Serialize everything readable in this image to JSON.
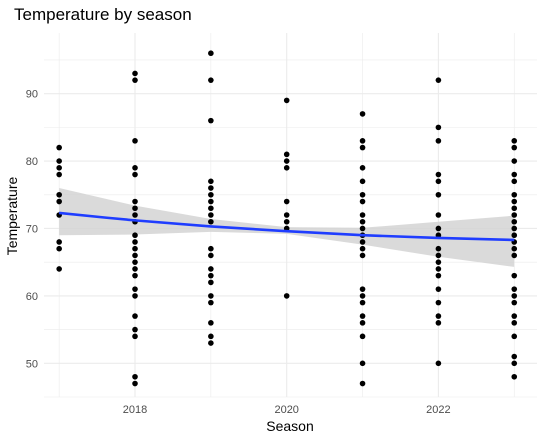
{
  "chart_data": {
    "type": "scatter",
    "title": "Temperature by season",
    "xlabel": "Season",
    "ylabel": "Temperature",
    "xlim": [
      2016.8,
      2023.3
    ],
    "ylim": [
      45,
      99
    ],
    "x_ticks": [
      2018,
      2020,
      2022
    ],
    "y_ticks": [
      50,
      60,
      70,
      80,
      90
    ],
    "grid": true,
    "colors": {
      "points": "#000000",
      "trend_line": "#1f3dff",
      "band": "#d3d3d3",
      "grid": "#ebebeb"
    },
    "points": [
      {
        "x": 2017,
        "y": 82
      },
      {
        "x": 2017,
        "y": 80
      },
      {
        "x": 2017,
        "y": 79
      },
      {
        "x": 2017,
        "y": 78
      },
      {
        "x": 2017,
        "y": 75
      },
      {
        "x": 2017,
        "y": 74
      },
      {
        "x": 2017,
        "y": 72
      },
      {
        "x": 2017,
        "y": 68
      },
      {
        "x": 2017,
        "y": 67
      },
      {
        "x": 2017,
        "y": 64
      },
      {
        "x": 2018,
        "y": 93
      },
      {
        "x": 2018,
        "y": 92
      },
      {
        "x": 2018,
        "y": 83
      },
      {
        "x": 2018,
        "y": 79
      },
      {
        "x": 2018,
        "y": 78
      },
      {
        "x": 2018,
        "y": 74
      },
      {
        "x": 2018,
        "y": 73
      },
      {
        "x": 2018,
        "y": 72
      },
      {
        "x": 2018,
        "y": 71
      },
      {
        "x": 2018,
        "y": 69
      },
      {
        "x": 2018,
        "y": 68
      },
      {
        "x": 2018,
        "y": 67
      },
      {
        "x": 2018,
        "y": 66
      },
      {
        "x": 2018,
        "y": 65
      },
      {
        "x": 2018,
        "y": 64
      },
      {
        "x": 2018,
        "y": 63
      },
      {
        "x": 2018,
        "y": 61
      },
      {
        "x": 2018,
        "y": 60
      },
      {
        "x": 2018,
        "y": 57
      },
      {
        "x": 2018,
        "y": 55
      },
      {
        "x": 2018,
        "y": 54
      },
      {
        "x": 2018,
        "y": 48
      },
      {
        "x": 2018,
        "y": 47
      },
      {
        "x": 2019,
        "y": 96
      },
      {
        "x": 2019,
        "y": 92
      },
      {
        "x": 2019,
        "y": 86
      },
      {
        "x": 2019,
        "y": 77
      },
      {
        "x": 2019,
        "y": 76
      },
      {
        "x": 2019,
        "y": 75
      },
      {
        "x": 2019,
        "y": 74
      },
      {
        "x": 2019,
        "y": 73
      },
      {
        "x": 2019,
        "y": 72
      },
      {
        "x": 2019,
        "y": 71
      },
      {
        "x": 2019,
        "y": 67
      },
      {
        "x": 2019,
        "y": 66
      },
      {
        "x": 2019,
        "y": 64
      },
      {
        "x": 2019,
        "y": 63
      },
      {
        "x": 2019,
        "y": 62
      },
      {
        "x": 2019,
        "y": 60
      },
      {
        "x": 2019,
        "y": 59
      },
      {
        "x": 2019,
        "y": 56
      },
      {
        "x": 2019,
        "y": 54
      },
      {
        "x": 2019,
        "y": 53
      },
      {
        "x": 2020,
        "y": 89
      },
      {
        "x": 2020,
        "y": 81
      },
      {
        "x": 2020,
        "y": 80
      },
      {
        "x": 2020,
        "y": 79
      },
      {
        "x": 2020,
        "y": 74
      },
      {
        "x": 2020,
        "y": 72
      },
      {
        "x": 2020,
        "y": 71
      },
      {
        "x": 2020,
        "y": 70
      },
      {
        "x": 2020,
        "y": 60
      },
      {
        "x": 2021,
        "y": 87
      },
      {
        "x": 2021,
        "y": 83
      },
      {
        "x": 2021,
        "y": 82
      },
      {
        "x": 2021,
        "y": 79
      },
      {
        "x": 2021,
        "y": 77
      },
      {
        "x": 2021,
        "y": 75
      },
      {
        "x": 2021,
        "y": 74
      },
      {
        "x": 2021,
        "y": 72
      },
      {
        "x": 2021,
        "y": 71
      },
      {
        "x": 2021,
        "y": 70
      },
      {
        "x": 2021,
        "y": 69
      },
      {
        "x": 2021,
        "y": 68
      },
      {
        "x": 2021,
        "y": 67
      },
      {
        "x": 2021,
        "y": 66
      },
      {
        "x": 2021,
        "y": 61
      },
      {
        "x": 2021,
        "y": 60
      },
      {
        "x": 2021,
        "y": 59
      },
      {
        "x": 2021,
        "y": 57
      },
      {
        "x": 2021,
        "y": 56
      },
      {
        "x": 2021,
        "y": 54
      },
      {
        "x": 2021,
        "y": 50
      },
      {
        "x": 2021,
        "y": 47
      },
      {
        "x": 2022,
        "y": 92
      },
      {
        "x": 2022,
        "y": 85
      },
      {
        "x": 2022,
        "y": 83
      },
      {
        "x": 2022,
        "y": 78
      },
      {
        "x": 2022,
        "y": 77
      },
      {
        "x": 2022,
        "y": 75
      },
      {
        "x": 2022,
        "y": 72
      },
      {
        "x": 2022,
        "y": 70
      },
      {
        "x": 2022,
        "y": 69
      },
      {
        "x": 2022,
        "y": 67
      },
      {
        "x": 2022,
        "y": 66
      },
      {
        "x": 2022,
        "y": 65
      },
      {
        "x": 2022,
        "y": 64
      },
      {
        "x": 2022,
        "y": 63
      },
      {
        "x": 2022,
        "y": 61
      },
      {
        "x": 2022,
        "y": 59
      },
      {
        "x": 2022,
        "y": 57
      },
      {
        "x": 2022,
        "y": 56
      },
      {
        "x": 2022,
        "y": 50
      },
      {
        "x": 2023,
        "y": 83
      },
      {
        "x": 2023,
        "y": 82
      },
      {
        "x": 2023,
        "y": 80
      },
      {
        "x": 2023,
        "y": 78
      },
      {
        "x": 2023,
        "y": 77
      },
      {
        "x": 2023,
        "y": 75
      },
      {
        "x": 2023,
        "y": 74
      },
      {
        "x": 2023,
        "y": 73
      },
      {
        "x": 2023,
        "y": 72
      },
      {
        "x": 2023,
        "y": 71
      },
      {
        "x": 2023,
        "y": 70
      },
      {
        "x": 2023,
        "y": 69
      },
      {
        "x": 2023,
        "y": 68
      },
      {
        "x": 2023,
        "y": 67
      },
      {
        "x": 2023,
        "y": 66
      },
      {
        "x": 2023,
        "y": 63
      },
      {
        "x": 2023,
        "y": 61
      },
      {
        "x": 2023,
        "y": 60
      },
      {
        "x": 2023,
        "y": 59
      },
      {
        "x": 2023,
        "y": 57
      },
      {
        "x": 2023,
        "y": 56
      },
      {
        "x": 2023,
        "y": 54
      },
      {
        "x": 2023,
        "y": 51
      },
      {
        "x": 2023,
        "y": 50
      },
      {
        "x": 2023,
        "y": 48
      }
    ],
    "trend_line": {
      "x": [
        2017,
        2018,
        2019,
        2020,
        2021,
        2022,
        2023
      ],
      "y": [
        72.3,
        71.2,
        70.3,
        69.6,
        69.0,
        68.6,
        68.3
      ],
      "lower": [
        69.0,
        69.1,
        69.5,
        69.2,
        67.6,
        65.8,
        64.3
      ],
      "upper": [
        76.0,
        73.4,
        71.4,
        70.2,
        70.1,
        71.0,
        71.9
      ]
    }
  }
}
